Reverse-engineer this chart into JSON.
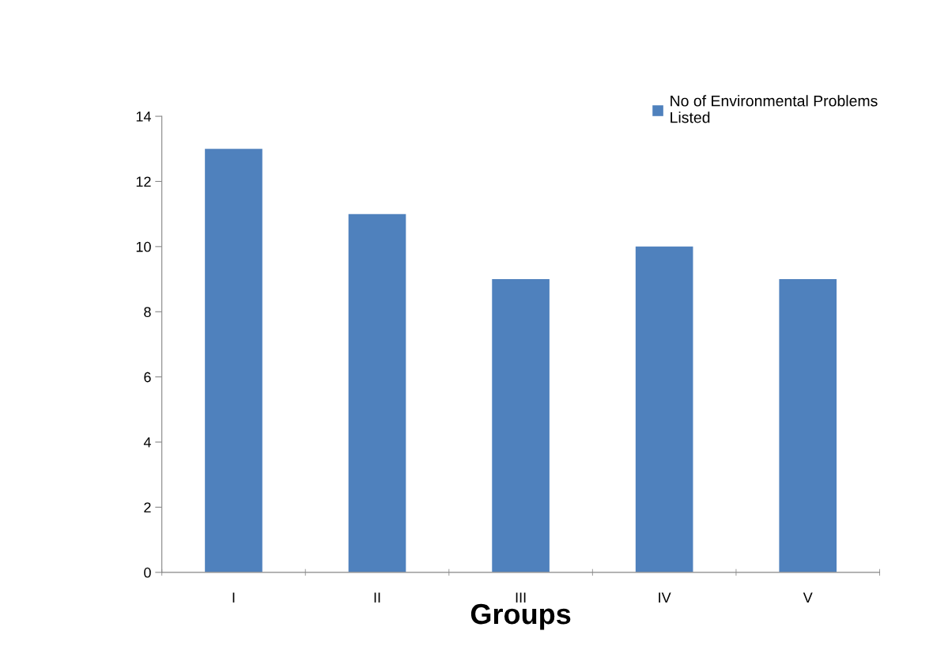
{
  "chart_data": {
    "type": "bar",
    "xlabel": "Groups",
    "categories": [
      "I",
      "II",
      "III",
      "IV",
      "V"
    ],
    "series": [
      {
        "name": "No of Environmental Problems\nListed",
        "color": "#4f81bd",
        "values": [
          13,
          11,
          9,
          10,
          9
        ]
      }
    ],
    "ylim": [
      0,
      14
    ],
    "yticks": [
      0,
      2,
      4,
      6,
      8,
      10,
      12,
      14
    ],
    "grid": false,
    "legend": "top right"
  }
}
